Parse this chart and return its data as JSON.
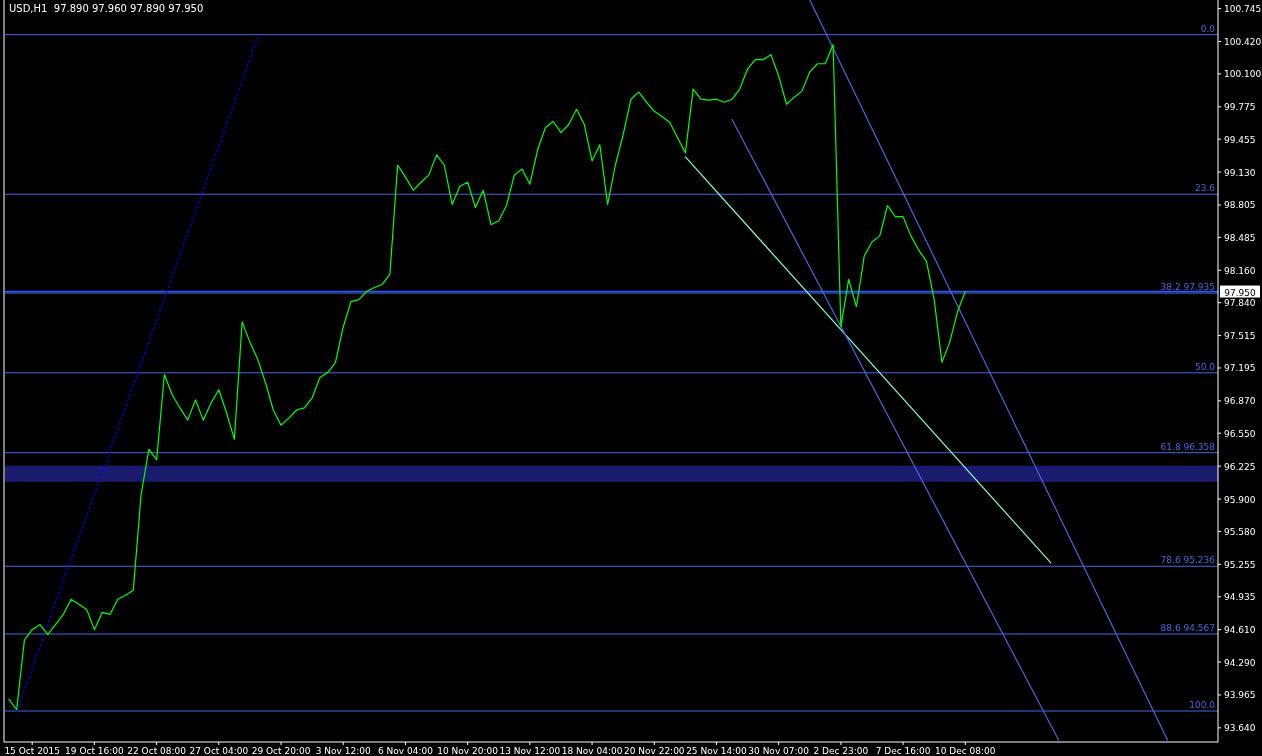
{
  "chart_data": {
    "type": "line",
    "title": "USD,H1  97.890 97.960 97.890 97.950",
    "categories": [
      null,
      null,
      null,
      "15 Oct 2015",
      null,
      null,
      null,
      null,
      null,
      null,
      null,
      "19 Oct 16:00",
      null,
      null,
      null,
      null,
      null,
      null,
      null,
      "22 Oct 08:00",
      null,
      null,
      null,
      null,
      null,
      null,
      null,
      "27 Oct 04:00",
      null,
      null,
      null,
      null,
      null,
      null,
      null,
      "29 Oct 20:00",
      null,
      null,
      null,
      null,
      null,
      null,
      null,
      "3 Nov 12:00",
      null,
      null,
      null,
      null,
      null,
      null,
      null,
      "6 Nov 04:00",
      null,
      null,
      null,
      null,
      null,
      null,
      null,
      "10 Nov 20:00",
      null,
      null,
      null,
      null,
      null,
      null,
      null,
      "13 Nov 12:00",
      null,
      null,
      null,
      null,
      null,
      null,
      null,
      "18 Nov 04:00",
      null,
      null,
      null,
      null,
      null,
      null,
      null,
      "20 Nov 22:00",
      null,
      null,
      null,
      null,
      null,
      null,
      null,
      "25 Nov 14:00",
      null,
      null,
      null,
      null,
      null,
      null,
      null,
      "30 Nov 07:00",
      null,
      null,
      null,
      null,
      null,
      null,
      null,
      "2 Dec 23:00",
      null,
      null,
      null,
      null,
      null,
      null,
      null,
      "7 Dec 16:00",
      null,
      null,
      null,
      null,
      null,
      null,
      null,
      "10 Dec 08:00",
      null,
      null,
      null,
      null,
      null,
      null,
      null,
      null,
      null,
      null,
      null,
      null,
      null,
      null,
      null,
      null,
      null,
      null,
      null,
      null,
      null,
      null,
      null,
      null,
      null,
      null,
      null,
      null,
      null,
      null,
      null,
      null
    ],
    "ylim": [
      93.5,
      100.83
    ],
    "yticks": [
      {
        "value": 93.64,
        "label": "93.640"
      },
      {
        "value": 93.965,
        "label": "93.965"
      },
      {
        "value": 94.29,
        "label": "94.290"
      },
      {
        "value": 94.61,
        "label": "94.610"
      },
      {
        "value": 94.935,
        "label": "94.935"
      },
      {
        "value": 95.255,
        "label": "95.255"
      },
      {
        "value": 95.58,
        "label": "95.580"
      },
      {
        "value": 95.9,
        "label": "95.900"
      },
      {
        "value": 96.225,
        "label": "96.225"
      },
      {
        "value": 96.55,
        "label": "96.550"
      },
      {
        "value": 96.87,
        "label": "96.870"
      },
      {
        "value": 97.195,
        "label": "97.195"
      },
      {
        "value": 97.515,
        "label": "97.515"
      },
      {
        "value": 97.84,
        "label": "97.840"
      },
      {
        "value": 98.16,
        "label": "98.160"
      },
      {
        "value": 98.485,
        "label": "98.485"
      },
      {
        "value": 98.805,
        "label": "98.805"
      },
      {
        "value": 99.13,
        "label": "99.130"
      },
      {
        "value": 99.455,
        "label": "99.455"
      },
      {
        "value": 99.775,
        "label": "99.775"
      },
      {
        "value": 100.1,
        "label": "100.100"
      },
      {
        "value": 100.42,
        "label": "100.420"
      },
      {
        "value": 100.745,
        "label": "100.745"
      }
    ],
    "bands": [
      {
        "axis": "y",
        "from": 96.07,
        "to": 96.23,
        "color": "#1c1c6e"
      }
    ],
    "ref_lines": [
      {
        "axis": "y",
        "value": 97.95,
        "label": "97.950",
        "color": "#3355ff"
      },
      {
        "axis": "y",
        "value": 100.488,
        "color": "#4169e1"
      },
      {
        "axis": "y",
        "value": 98.911,
        "color": "#4169e1"
      },
      {
        "axis": "y",
        "value": 97.935,
        "label": "38.2 97.935",
        "color": "#4169e1"
      },
      {
        "axis": "y",
        "value": 97.147,
        "color": "#4169e1"
      },
      {
        "axis": "y",
        "value": 96.358,
        "label": "61.8 96.358",
        "color": "#4169e1"
      },
      {
        "axis": "y",
        "value": 95.236,
        "label": "78.6 95.236",
        "color": "#4169e1"
      },
      {
        "axis": "y",
        "value": 94.567,
        "label": "88.6 94.567",
        "color": "#4169e1"
      },
      {
        "axis": "y",
        "value": 93.806,
        "color": "#4169e1"
      }
    ],
    "annotations": [
      {
        "text": "0.0",
        "y": 100.488
      },
      {
        "text": "23.6",
        "y": 98.911
      },
      {
        "text": "50.0",
        "y": 97.147
      },
      {
        "text": "100.0",
        "y": 93.806
      }
    ],
    "series": [
      {
        "color": "#0000ff",
        "line_style": "dotted",
        "values": [
          null,
          93.8,
          null,
          null,
          null,
          null,
          null,
          null,
          null,
          null,
          null,
          null,
          null,
          null,
          null,
          null,
          null,
          null,
          null,
          null,
          null,
          null,
          null,
          null,
          null,
          null,
          null,
          null,
          null,
          null,
          null,
          null,
          100.46,
          null,
          null,
          null,
          null,
          null,
          null,
          null,
          null,
          null,
          null,
          null,
          null,
          null,
          null,
          null,
          null,
          null,
          null,
          null,
          null,
          null,
          null,
          null,
          null,
          null,
          null,
          null,
          null,
          null,
          null,
          null,
          null,
          null,
          null,
          null,
          null,
          null,
          null,
          null,
          null,
          null,
          null,
          null,
          null,
          null,
          null,
          null,
          null,
          null,
          null,
          null,
          null,
          null,
          null,
          null,
          null,
          null,
          null,
          null,
          null,
          null,
          null,
          null,
          null,
          null,
          null,
          null,
          null,
          null,
          null,
          null,
          null,
          null,
          null,
          null,
          null,
          null,
          null,
          null,
          null,
          null,
          null,
          null,
          null,
          null,
          null,
          null,
          null,
          null,
          null,
          null,
          null,
          null,
          null,
          null,
          null,
          null,
          null,
          null,
          null,
          null,
          null,
          null,
          null,
          null,
          null,
          null,
          null,
          null,
          null,
          null,
          null,
          null,
          null,
          null,
          null,
          null,
          null,
          null,
          null,
          null,
          null,
          null
        ]
      },
      {
        "color": "#7fffd4",
        "values": [
          null,
          null,
          null,
          null,
          null,
          null,
          null,
          null,
          null,
          null,
          null,
          null,
          null,
          null,
          null,
          null,
          null,
          null,
          null,
          null,
          null,
          null,
          null,
          null,
          null,
          null,
          null,
          null,
          null,
          null,
          null,
          null,
          null,
          null,
          null,
          null,
          null,
          null,
          null,
          null,
          null,
          null,
          null,
          null,
          null,
          null,
          null,
          null,
          null,
          null,
          null,
          null,
          null,
          null,
          null,
          null,
          null,
          null,
          null,
          null,
          null,
          null,
          null,
          null,
          null,
          null,
          null,
          null,
          null,
          null,
          null,
          null,
          null,
          null,
          null,
          null,
          null,
          null,
          null,
          null,
          null,
          null,
          null,
          null,
          null,
          null,
          null,
          99.28,
          null,
          null,
          null,
          null,
          null,
          null,
          null,
          null,
          null,
          null,
          null,
          null,
          null,
          null,
          null,
          null,
          null,
          null,
          null,
          null,
          null,
          null,
          null,
          null,
          null,
          null,
          null,
          null,
          null,
          null,
          null,
          null,
          null,
          null,
          null,
          null,
          null,
          null,
          null,
          null,
          null,
          null,
          null,
          null,
          null,
          null,
          95.27,
          null,
          null,
          null,
          null,
          null,
          null,
          null,
          null,
          null,
          null,
          null,
          null,
          null,
          null,
          null,
          null,
          null,
          null,
          null,
          null,
          null
        ]
      },
      {
        "color": "#4169e1",
        "values": [
          null,
          null,
          null,
          null,
          null,
          null,
          null,
          null,
          null,
          null,
          null,
          null,
          null,
          null,
          null,
          null,
          null,
          null,
          null,
          null,
          null,
          null,
          null,
          null,
          null,
          null,
          null,
          null,
          null,
          null,
          null,
          null,
          null,
          null,
          null,
          null,
          null,
          null,
          null,
          null,
          null,
          null,
          null,
          null,
          null,
          null,
          null,
          null,
          null,
          null,
          null,
          null,
          null,
          null,
          null,
          null,
          null,
          null,
          null,
          null,
          null,
          null,
          null,
          null,
          null,
          null,
          null,
          null,
          null,
          null,
          null,
          null,
          null,
          null,
          null,
          null,
          null,
          null,
          null,
          null,
          null,
          null,
          null,
          null,
          null,
          null,
          null,
          null,
          null,
          null,
          null,
          null,
          null,
          99.65,
          null,
          null,
          null,
          null,
          null,
          null,
          null,
          null,
          null,
          null,
          null,
          null,
          null,
          null,
          null,
          null,
          null,
          null,
          null,
          null,
          null,
          null,
          null,
          null,
          null,
          null,
          null,
          null,
          null,
          null,
          null,
          null,
          null,
          null,
          null,
          null,
          null,
          null,
          null,
          null,
          null,
          93.52,
          null,
          null,
          null,
          null,
          null,
          null,
          null,
          null,
          null,
          null,
          null,
          null,
          null,
          null,
          null,
          null,
          null,
          null,
          null,
          null
        ]
      },
      {
        "color": "#4169e1",
        "values": [
          null,
          null,
          null,
          null,
          null,
          null,
          null,
          null,
          null,
          null,
          null,
          null,
          null,
          null,
          null,
          null,
          null,
          null,
          null,
          null,
          null,
          null,
          null,
          null,
          null,
          null,
          null,
          null,
          null,
          null,
          null,
          null,
          null,
          null,
          null,
          null,
          null,
          null,
          null,
          null,
          null,
          null,
          null,
          null,
          null,
          null,
          null,
          null,
          null,
          null,
          null,
          null,
          null,
          null,
          null,
          null,
          null,
          null,
          null,
          null,
          null,
          null,
          null,
          null,
          null,
          null,
          null,
          null,
          null,
          null,
          null,
          null,
          null,
          null,
          null,
          null,
          null,
          null,
          null,
          null,
          null,
          null,
          null,
          null,
          null,
          null,
          null,
          null,
          null,
          null,
          null,
          null,
          null,
          null,
          null,
          null,
          null,
          null,
          null,
          null,
          null,
          null,
          null,
          100.83,
          null,
          null,
          null,
          null,
          null,
          null,
          null,
          null,
          null,
          null,
          null,
          null,
          null,
          null,
          null,
          null,
          null,
          null,
          null,
          null,
          null,
          null,
          null,
          null,
          null,
          null,
          null,
          null,
          null,
          null,
          null,
          null,
          null,
          null,
          null,
          null,
          null,
          null,
          null,
          null,
          null,
          null,
          null,
          null,
          null,
          93.52,
          null,
          null,
          null,
          null,
          null,
          null
        ]
      },
      {
        "color": "#00ff00",
        "values": [
          93.92,
          93.82,
          94.51,
          94.61,
          94.66,
          94.56,
          94.66,
          94.76,
          94.91,
          94.86,
          94.81,
          94.61,
          94.78,
          94.76,
          94.91,
          94.95,
          95.0,
          95.94,
          96.39,
          96.29,
          97.13,
          96.93,
          96.8,
          96.68,
          96.88,
          96.68,
          96.85,
          96.98,
          96.75,
          96.49,
          97.65,
          97.45,
          97.28,
          97.05,
          96.78,
          96.63,
          96.7,
          96.78,
          96.8,
          96.9,
          97.1,
          97.15,
          97.25,
          97.6,
          97.85,
          97.87,
          97.95,
          97.99,
          98.02,
          98.12,
          99.2,
          99.08,
          98.95,
          99.03,
          99.1,
          99.3,
          99.2,
          98.81,
          98.99,
          99.03,
          98.78,
          98.95,
          98.61,
          98.65,
          98.8,
          99.1,
          99.16,
          99.01,
          99.35,
          99.57,
          99.63,
          99.52,
          99.6,
          99.75,
          99.6,
          99.24,
          99.4,
          98.81,
          99.2,
          99.5,
          99.85,
          99.92,
          99.82,
          99.73,
          99.68,
          99.62,
          99.47,
          99.32,
          99.95,
          99.85,
          99.84,
          99.85,
          99.82,
          99.85,
          99.95,
          100.15,
          100.24,
          100.24,
          100.29,
          100.08,
          99.8,
          99.87,
          99.93,
          100.12,
          100.2,
          100.2,
          100.39,
          97.6,
          98.07,
          97.8,
          98.3,
          98.44,
          98.5,
          98.8,
          98.69,
          98.69,
          98.5,
          98.36,
          98.25,
          97.87,
          97.25,
          97.45,
          97.75,
          97.95,
          null,
          null,
          null,
          null,
          null,
          null,
          null,
          null,
          null,
          null,
          null,
          null,
          null,
          null,
          null,
          null,
          null,
          null,
          null,
          null,
          null,
          null,
          null,
          null,
          null,
          null,
          null,
          null,
          null,
          null,
          null,
          null
        ]
      }
    ]
  }
}
